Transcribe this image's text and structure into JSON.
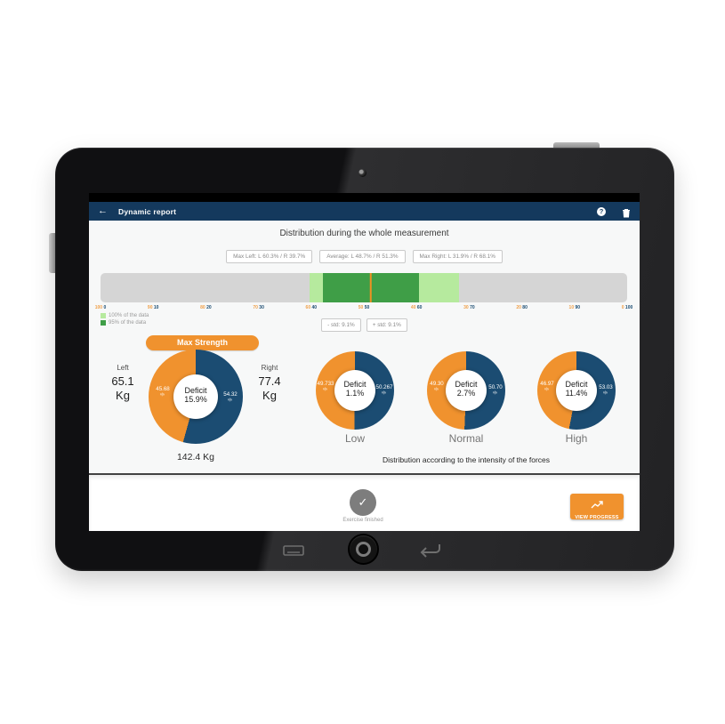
{
  "header": {
    "title": "Dynamic report",
    "back_glyph": "←",
    "help_glyph": "?"
  },
  "report": {
    "title": "Distribution during the whole measurement",
    "stat_boxes": [
      "Max Left: L 60.3% / R 39.7%",
      "Average: L 48.7% / R 51.3%",
      "Max Right: L 31.9% / R 68.1%"
    ],
    "legend": [
      {
        "label": "100% of the data",
        "color": "#b6ea9e"
      },
      {
        "label": "95% of the data",
        "color": "#3f9e47"
      }
    ],
    "std_minus": "- std: 9.1%",
    "std_plus": "+ std: 9.1%"
  },
  "strength": {
    "button_label": "Max Strength",
    "left_label": "Left",
    "left_value": "65.1",
    "left_unit": "Kg",
    "right_label": "Right",
    "right_value": "77.4",
    "right_unit": "Kg",
    "total": "142.4 Kg"
  },
  "intensity": {
    "caption": "Distribution according to the intensity of the forces"
  },
  "footer": {
    "check_glyph": "✓",
    "status_label": "Exercise finished",
    "view_progress_label": "VIEW PROGRESS"
  },
  "colors": {
    "header_bg": "#14395d",
    "accent_orange": "#f0922e",
    "donut_blue": "#1b4c72",
    "light_green": "#b6ea9e",
    "dark_green": "#3f9e47",
    "average_line": "#ef9022"
  },
  "chart_data": [
    {
      "id": "whole-measurement-distribution",
      "type": "bar",
      "title": "Distribution during the whole measurement",
      "axis": {
        "min": 0,
        "max": 100,
        "tick_step": 10,
        "tick_labels_left": [
          100,
          90,
          80,
          70,
          60,
          50,
          40,
          30,
          20,
          10,
          0
        ],
        "tick_labels_right": [
          0,
          10,
          20,
          30,
          40,
          50,
          60,
          70,
          80,
          90,
          100
        ]
      },
      "series": [
        {
          "name": "100% of the data",
          "color": "#b6ea9e",
          "range_right_pct": [
            39.7,
            68.1
          ]
        },
        {
          "name": "95% of the data",
          "color": "#3f9e47",
          "range_right_pct": [
            42.2,
            60.4
          ]
        }
      ],
      "average_marker": {
        "right_pct": 51.3,
        "color": "#ef9022"
      },
      "std_pct": 9.1,
      "max_left": {
        "L": 60.3,
        "R": 39.7
      },
      "average": {
        "L": 48.7,
        "R": 51.3
      },
      "max_right": {
        "L": 31.9,
        "R": 68.1
      }
    },
    {
      "id": "max-strength-donut",
      "type": "pie",
      "center_label": "Deficit",
      "center_value": "15.9%",
      "slices": [
        {
          "name": "Left",
          "value": 45.68,
          "display": "45.68",
          "color": "#f0922e"
        },
        {
          "name": "Right",
          "value": 54.32,
          "display": "54.32",
          "color": "#1b4c72"
        }
      ]
    },
    {
      "id": "intensity-low-donut",
      "type": "pie",
      "title": "Low",
      "center_label": "Deficit",
      "center_value": "1.1%",
      "slices": [
        {
          "name": "Left",
          "value": 49.733,
          "display": "49.733",
          "color": "#f0922e"
        },
        {
          "name": "Right",
          "value": 50.267,
          "display": "50.267",
          "color": "#1b4c72"
        }
      ]
    },
    {
      "id": "intensity-normal-donut",
      "type": "pie",
      "title": "Normal",
      "center_label": "Deficit",
      "center_value": "2.7%",
      "slices": [
        {
          "name": "Left",
          "value": 49.3,
          "display": "49.30",
          "color": "#f0922e"
        },
        {
          "name": "Right",
          "value": 50.7,
          "display": "50.70",
          "color": "#1b4c72"
        }
      ]
    },
    {
      "id": "intensity-high-donut",
      "type": "pie",
      "title": "High",
      "center_label": "Deficit",
      "center_value": "11.4%",
      "slices": [
        {
          "name": "Left",
          "value": 46.97,
          "display": "46.97",
          "color": "#f0922e"
        },
        {
          "name": "Right",
          "value": 53.03,
          "display": "53.03",
          "color": "#1b4c72"
        }
      ]
    }
  ]
}
